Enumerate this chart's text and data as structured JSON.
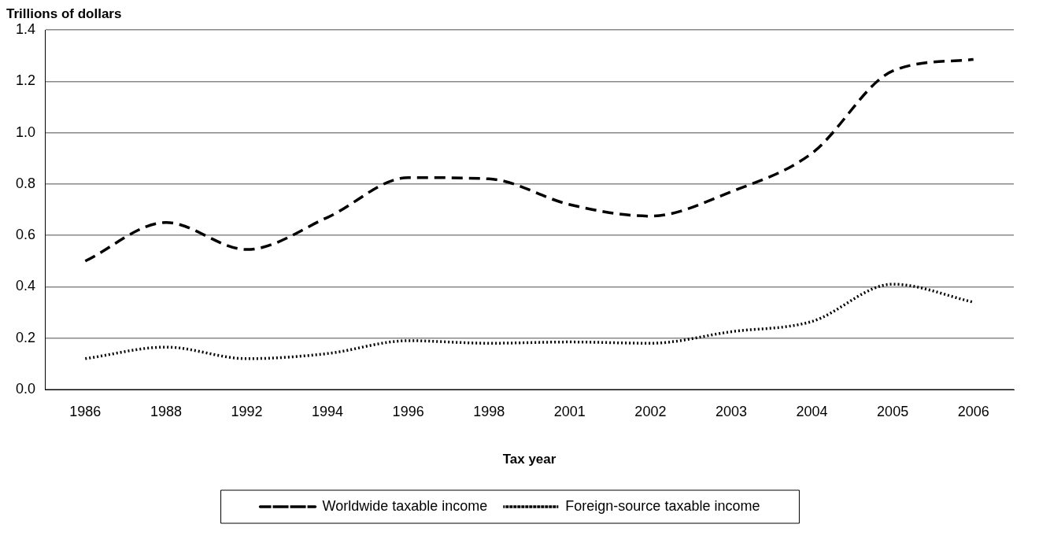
{
  "chart_data": {
    "type": "line",
    "ylabel": "Trillions of dollars",
    "xlabel": "Tax year",
    "categories": [
      "1986",
      "1988",
      "1992",
      "1994",
      "1996",
      "1998",
      "2001",
      "2002",
      "2003",
      "2004",
      "2005",
      "2006"
    ],
    "series": [
      {
        "name": "Worldwide taxable income",
        "color": "#000000",
        "line_style": "dashed",
        "values": [
          0.5,
          0.65,
          0.545,
          0.67,
          0.825,
          0.82,
          0.72,
          0.675,
          0.77,
          0.92,
          1.24,
          1.285
        ]
      },
      {
        "name": "Foreign-source taxable income",
        "color": "#000000",
        "line_style": "dotted",
        "values": [
          0.12,
          0.165,
          0.12,
          0.14,
          0.19,
          0.18,
          0.185,
          0.18,
          0.225,
          0.265,
          0.41,
          0.34
        ]
      }
    ],
    "ylim": [
      0,
      1.4
    ],
    "yticks": [
      {
        "value": 0,
        "label": "0.0"
      },
      {
        "value": 0.2,
        "label": "0.2"
      },
      {
        "value": 0.4,
        "label": "0.4"
      },
      {
        "value": 0.6,
        "label": "0.6"
      },
      {
        "value": 0.8,
        "label": "0.8"
      },
      {
        "value": 1,
        "label": "1.0"
      },
      {
        "value": 1.2,
        "label": "1.2"
      },
      {
        "value": 1.4,
        "label": "1.4"
      }
    ],
    "grid": "y",
    "legend": "bottom",
    "marker": "none"
  }
}
